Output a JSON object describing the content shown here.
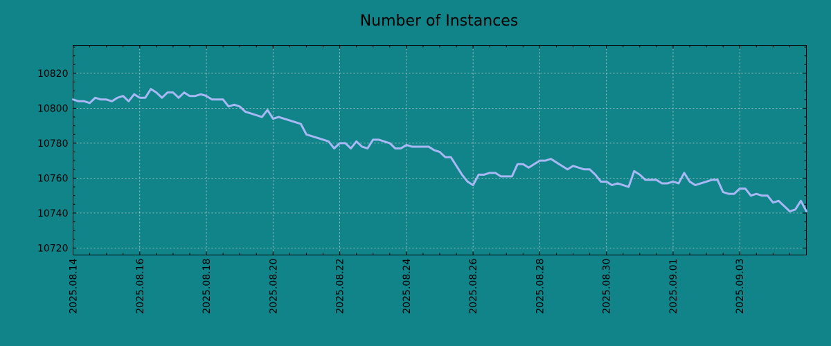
{
  "chart_data": {
    "type": "line",
    "title": "Number of Instances",
    "xlabel": "",
    "ylabel": "",
    "x_tick_labels": [
      "2025.08.14",
      "2025.08.16",
      "2025.08.18",
      "2025.08.20",
      "2025.08.22",
      "2025.08.24",
      "2025.08.26",
      "2025.08.28",
      "2025.08.30",
      "2025.09.01",
      "2025.09.03"
    ],
    "y_tick_labels": [
      "10720",
      "10740",
      "10760",
      "10780",
      "10800",
      "10820"
    ],
    "xlim": [
      "2025-08-14",
      "2025-09-05"
    ],
    "ylim": [
      10716,
      10836
    ],
    "grid": true,
    "colors": {
      "background": "#108488",
      "line": "#a7b8f5"
    },
    "series": [
      {
        "x": [
          "2025-08-14 00:00",
          "2025-08-14 04:00",
          "2025-08-14 08:00",
          "2025-08-14 12:00",
          "2025-08-14 16:00",
          "2025-08-14 20:00",
          "2025-08-15 00:00",
          "2025-08-15 04:00",
          "2025-08-15 08:00",
          "2025-08-15 12:00",
          "2025-08-15 16:00",
          "2025-08-15 20:00",
          "2025-08-16 00:00",
          "2025-08-16 04:00",
          "2025-08-16 08:00",
          "2025-08-16 12:00",
          "2025-08-16 16:00",
          "2025-08-16 20:00",
          "2025-08-17 00:00",
          "2025-08-17 04:00",
          "2025-08-17 08:00",
          "2025-08-17 12:00",
          "2025-08-17 16:00",
          "2025-08-17 20:00",
          "2025-08-18 00:00",
          "2025-08-18 04:00",
          "2025-08-18 08:00",
          "2025-08-18 12:00",
          "2025-08-18 16:00",
          "2025-08-18 20:00",
          "2025-08-19 00:00",
          "2025-08-19 04:00",
          "2025-08-19 08:00",
          "2025-08-19 12:00",
          "2025-08-19 16:00",
          "2025-08-19 20:00",
          "2025-08-20 00:00",
          "2025-08-20 04:00",
          "2025-08-20 08:00",
          "2025-08-20 12:00",
          "2025-08-20 16:00",
          "2025-08-20 20:00",
          "2025-08-21 00:00",
          "2025-08-21 04:00",
          "2025-08-21 08:00",
          "2025-08-21 12:00",
          "2025-08-21 16:00",
          "2025-08-21 20:00",
          "2025-08-22 00:00",
          "2025-08-22 04:00",
          "2025-08-22 08:00",
          "2025-08-22 12:00",
          "2025-08-22 16:00",
          "2025-08-22 20:00",
          "2025-08-23 00:00",
          "2025-08-23 04:00",
          "2025-08-23 08:00",
          "2025-08-23 12:00",
          "2025-08-23 16:00",
          "2025-08-23 20:00",
          "2025-08-24 00:00",
          "2025-08-24 04:00",
          "2025-08-24 08:00",
          "2025-08-24 12:00",
          "2025-08-24 16:00",
          "2025-08-24 20:00",
          "2025-08-25 00:00",
          "2025-08-25 04:00",
          "2025-08-25 08:00",
          "2025-08-25 12:00",
          "2025-08-25 16:00",
          "2025-08-25 20:00",
          "2025-08-26 00:00",
          "2025-08-26 04:00",
          "2025-08-26 08:00",
          "2025-08-26 12:00",
          "2025-08-26 16:00",
          "2025-08-26 20:00",
          "2025-08-27 00:00",
          "2025-08-27 04:00",
          "2025-08-27 08:00",
          "2025-08-27 12:00",
          "2025-08-27 16:00",
          "2025-08-27 20:00",
          "2025-08-28 00:00",
          "2025-08-28 04:00",
          "2025-08-28 08:00",
          "2025-08-28 12:00",
          "2025-08-28 16:00",
          "2025-08-28 20:00",
          "2025-08-29 00:00",
          "2025-08-29 04:00",
          "2025-08-29 08:00",
          "2025-08-29 12:00",
          "2025-08-29 16:00",
          "2025-08-29 20:00",
          "2025-08-30 00:00",
          "2025-08-30 04:00",
          "2025-08-30 08:00",
          "2025-08-30 12:00",
          "2025-08-30 16:00",
          "2025-08-30 20:00",
          "2025-08-31 00:00",
          "2025-08-31 04:00",
          "2025-08-31 08:00",
          "2025-08-31 12:00",
          "2025-08-31 16:00",
          "2025-08-31 20:00",
          "2025-09-01 00:00",
          "2025-09-01 04:00",
          "2025-09-01 08:00",
          "2025-09-01 12:00",
          "2025-09-01 16:00",
          "2025-09-01 20:00",
          "2025-09-02 00:00",
          "2025-09-02 04:00",
          "2025-09-02 08:00",
          "2025-09-02 12:00",
          "2025-09-02 16:00",
          "2025-09-02 20:00",
          "2025-09-03 00:00",
          "2025-09-03 04:00",
          "2025-09-03 08:00",
          "2025-09-03 12:00",
          "2025-09-03 16:00",
          "2025-09-03 20:00",
          "2025-09-04 00:00",
          "2025-09-04 04:00",
          "2025-09-04 08:00",
          "2025-09-04 12:00",
          "2025-09-04 16:00",
          "2025-09-04 20:00",
          "2025-09-05 00:00"
        ],
        "y": [
          10805,
          10804,
          10804,
          10803,
          10806,
          10805,
          10805,
          10804,
          10806,
          10807,
          10804,
          10808,
          10806,
          10806,
          10811,
          10809,
          10806,
          10809,
          10809,
          10806,
          10809,
          10807,
          10807,
          10808,
          10807,
          10805,
          10805,
          10805,
          10801,
          10802,
          10801,
          10798,
          10797,
          10796,
          10795,
          10799,
          10794,
          10795,
          10794,
          10793,
          10792,
          10791,
          10785,
          10784,
          10783,
          10782,
          10781,
          10777,
          10780,
          10780,
          10777,
          10781,
          10778,
          10777,
          10782,
          10782,
          10781,
          10780,
          10777,
          10777,
          10779,
          10778,
          10778,
          10778,
          10778,
          10776,
          10775,
          10772,
          10772,
          10767,
          10762,
          10758,
          10756,
          10762,
          10762,
          10763,
          10763,
          10761,
          10761,
          10761,
          10768,
          10768,
          10766,
          10768,
          10770,
          10770,
          10771,
          10769,
          10767,
          10765,
          10767,
          10766,
          10765,
          10765,
          10762,
          10758,
          10758,
          10756,
          10757,
          10756,
          10755,
          10764,
          10762,
          10759,
          10759,
          10759,
          10757,
          10757,
          10758,
          10757,
          10763,
          10758,
          10756,
          10757,
          10758,
          10759,
          10759,
          10752,
          10751,
          10751,
          10754,
          10754,
          10750,
          10751,
          10750,
          10750,
          10746,
          10747,
          10744,
          10741,
          10742,
          10747,
          10741
        ]
      }
    ]
  }
}
